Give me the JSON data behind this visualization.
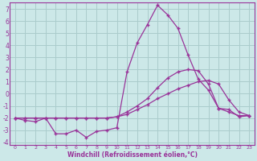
{
  "background_color": "#cce8e8",
  "grid_color": "#aacccc",
  "line_color": "#993399",
  "x_label": "Windchill (Refroidissement éolien,°C)",
  "xlim": [
    -0.5,
    23.5
  ],
  "ylim": [
    -4.2,
    7.5
  ],
  "yticks": [
    -4,
    -3,
    -2,
    -1,
    0,
    1,
    2,
    3,
    4,
    5,
    6,
    7
  ],
  "xticks": [
    0,
    1,
    2,
    3,
    4,
    5,
    6,
    7,
    8,
    9,
    10,
    11,
    12,
    13,
    14,
    15,
    16,
    17,
    18,
    19,
    20,
    21,
    22,
    23
  ],
  "series1_x": [
    0,
    1,
    2,
    3,
    4,
    5,
    6,
    7,
    8,
    9,
    10,
    11,
    12,
    13,
    14,
    15,
    16,
    17,
    18,
    19,
    20,
    21,
    22,
    23
  ],
  "series1_y": [
    -2.0,
    -2.2,
    -2.3,
    -2.0,
    -3.3,
    -3.3,
    -3.0,
    -3.6,
    -3.1,
    -3.0,
    -2.8,
    1.8,
    4.2,
    5.7,
    7.3,
    6.5,
    5.4,
    3.2,
    1.2,
    0.3,
    -1.2,
    -1.3,
    -1.9,
    -1.8
  ],
  "series2_x": [
    0,
    1,
    2,
    3,
    4,
    5,
    6,
    7,
    8,
    9,
    10,
    11,
    12,
    13,
    14,
    15,
    16,
    17,
    18,
    19,
    20,
    21,
    22,
    23
  ],
  "series2_y": [
    -2.0,
    -2.0,
    -2.0,
    -2.0,
    -2.0,
    -2.0,
    -2.0,
    -2.0,
    -2.0,
    -2.0,
    -1.9,
    -1.7,
    -1.3,
    -0.9,
    -0.4,
    0.0,
    0.4,
    0.7,
    1.0,
    1.1,
    0.8,
    -0.5,
    -1.5,
    -1.8
  ],
  "series3_x": [
    0,
    1,
    2,
    3,
    4,
    5,
    6,
    7,
    8,
    9,
    10,
    11,
    12,
    13,
    14,
    15,
    16,
    17,
    18,
    19,
    20,
    21,
    22,
    23
  ],
  "series3_y": [
    -2.0,
    -2.0,
    -2.0,
    -2.0,
    -2.0,
    -2.0,
    -2.0,
    -2.0,
    -2.0,
    -2.0,
    -1.9,
    -1.5,
    -1.0,
    -0.4,
    0.5,
    1.3,
    1.8,
    2.0,
    1.9,
    0.8,
    -1.2,
    -1.5,
    -1.8,
    -1.8
  ]
}
